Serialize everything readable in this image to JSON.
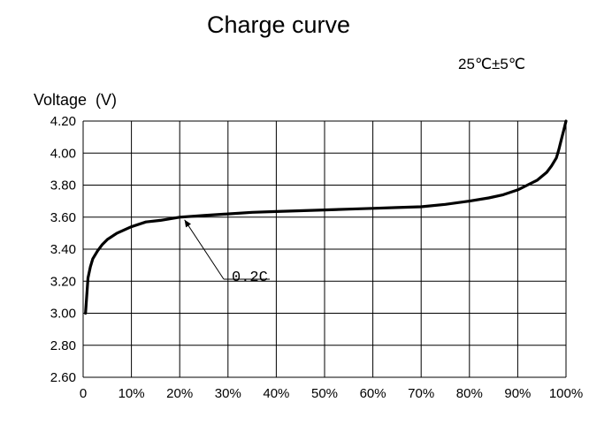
{
  "chart_data": {
    "type": "line",
    "title": "Charge curve",
    "condition": "25℃±5℃",
    "ylabel": "Voltage  (V)",
    "xlabel": "",
    "xlim": [
      0,
      100
    ],
    "ylim": [
      2.6,
      4.2
    ],
    "x_ticks": [
      0,
      10,
      20,
      30,
      40,
      50,
      60,
      70,
      80,
      90,
      100
    ],
    "x_tick_labels": [
      "0",
      "10%",
      "20%",
      "30%",
      "40%",
      "50%",
      "60%",
      "70%",
      "80%",
      "90%",
      "100%"
    ],
    "y_ticks": [
      2.6,
      2.8,
      3.0,
      3.2,
      3.4,
      3.6,
      3.8,
      4.0,
      4.2
    ],
    "y_tick_labels": [
      "2.60",
      "2.80",
      "3.00",
      "3.20",
      "3.40",
      "3.60",
      "3.80",
      "4.00",
      "4.20"
    ],
    "grid": true,
    "series": [
      {
        "x": [
          0.5,
          1,
          1.5,
          2,
          3,
          4,
          5,
          7,
          10,
          13,
          16,
          20,
          25,
          30,
          35,
          40,
          45,
          50,
          55,
          60,
          65,
          70,
          75,
          80,
          84,
          87,
          90,
          92,
          94,
          96,
          97,
          98,
          98.5,
          99,
          99.5,
          100
        ],
        "y": [
          3.0,
          3.22,
          3.29,
          3.34,
          3.39,
          3.43,
          3.46,
          3.5,
          3.54,
          3.57,
          3.58,
          3.6,
          3.61,
          3.62,
          3.63,
          3.635,
          3.64,
          3.645,
          3.65,
          3.655,
          3.66,
          3.665,
          3.68,
          3.7,
          3.72,
          3.74,
          3.77,
          3.8,
          3.83,
          3.88,
          3.92,
          3.97,
          4.02,
          4.08,
          4.14,
          4.2
        ]
      }
    ],
    "annotations": [
      {
        "text": "0.2C",
        "x": 21,
        "y": 3.6
      }
    ]
  }
}
